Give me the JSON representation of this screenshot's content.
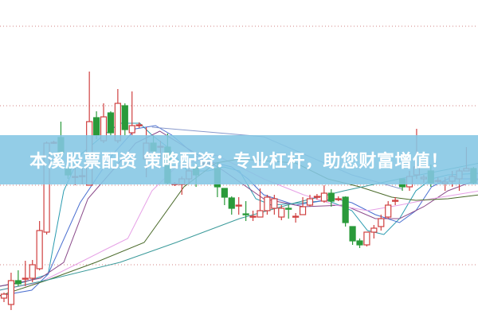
{
  "banner": {
    "text": "本溪股票配资 策略配资：专业杠杆，助您财富增值！"
  },
  "chart_data": {
    "type": "candlestick",
    "grid": true,
    "gridlines": [
      10,
      20,
      30,
      40
    ],
    "ylim": [
      0,
      43.3
    ],
    "colors": {
      "up": "#d04040",
      "down": "#2a9a3a",
      "grid": "#d08080",
      "banner": "#84c6e4"
    },
    "candles_ohlc": [
      [
        5.8,
        6.5,
        5.3,
        6.3
      ],
      [
        5.0,
        9.0,
        4.3,
        8.0
      ],
      [
        8.0,
        9.3,
        7.3,
        7.6
      ],
      [
        8.2,
        10.5,
        7.3,
        8.3
      ],
      [
        8.3,
        10.6,
        7.8,
        10.0
      ],
      [
        9.5,
        15.5,
        9.3,
        14.3
      ],
      [
        14.1,
        25.5,
        13.8,
        25.3
      ],
      [
        25.3,
        25.6,
        25.2,
        25.4
      ],
      [
        26.0,
        28.0,
        22.6,
        24.1
      ],
      [
        22.0,
        23.6,
        20.8,
        21.3
      ],
      [
        21.1,
        22.3,
        20.0,
        21.1
      ],
      [
        21.1,
        22.1,
        20.1,
        21.2
      ],
      [
        20.0,
        34.3,
        20.0,
        28.0
      ],
      [
        28.5,
        29.3,
        25.8,
        26.3
      ],
      [
        25.6,
        30.3,
        25.3,
        28.6
      ],
      [
        29.1,
        29.3,
        26.3,
        26.6
      ],
      [
        25.6,
        32.1,
        25.3,
        30.3
      ],
      [
        30.0,
        30.3,
        26.3,
        27.0
      ],
      [
        26.6,
        31.8,
        26.3,
        27.5
      ],
      [
        27.5,
        27.9,
        27.2,
        27.6
      ],
      [
        23.3,
        27.3,
        21.0,
        25.3
      ],
      [
        25.3,
        26.3,
        23.3,
        24.3
      ],
      [
        24.8,
        25.6,
        23.3,
        24.9
      ],
      [
        24.8,
        26.5,
        20.1,
        20.3
      ],
      [
        20.1,
        20.4,
        19.9,
        20.2
      ],
      [
        20.1,
        21.1,
        18.8,
        20.8
      ],
      [
        20.8,
        22.8,
        20.1,
        21.8
      ],
      [
        22.3,
        22.8,
        19.8,
        21.3
      ],
      [
        22.8,
        23.3,
        22.3,
        22.8
      ],
      [
        22.8,
        23.1,
        22.5,
        22.8
      ],
      [
        22.1,
        22.8,
        18.5,
        19.8
      ],
      [
        19.6,
        19.6,
        17.5,
        18.5
      ],
      [
        18.4,
        18.6,
        16.3,
        17.1
      ],
      [
        17.5,
        18.5,
        16.3,
        17.5
      ],
      [
        16.4,
        18.0,
        15.5,
        16.3
      ],
      [
        16.1,
        16.8,
        15.5,
        16.1
      ],
      [
        16.0,
        19.6,
        16.0,
        16.8
      ],
      [
        16.8,
        18.8,
        16.3,
        18.5
      ],
      [
        17.1,
        18.8,
        16.3,
        18.3
      ],
      [
        16.0,
        17.5,
        15.6,
        17.1
      ],
      [
        17.1,
        17.5,
        15.8,
        17.0
      ],
      [
        16.1,
        16.5,
        15.3,
        16.1
      ],
      [
        16.3,
        18.5,
        16.3,
        17.3
      ],
      [
        17.5,
        18.8,
        17.3,
        18.3
      ],
      [
        18.6,
        18.9,
        18.2,
        18.6
      ],
      [
        18.0,
        20.0,
        17.8,
        19.0
      ],
      [
        19.0,
        19.5,
        17.3,
        18.0
      ],
      [
        18.3,
        18.6,
        18.0,
        18.3
      ],
      [
        18.5,
        18.6,
        14.8,
        15.3
      ],
      [
        14.8,
        14.8,
        12.5,
        13.0
      ],
      [
        13.0,
        13.3,
        12.1,
        12.5
      ],
      [
        12.5,
        14.1,
        12.3,
        14.1
      ],
      [
        14.1,
        15.0,
        13.3,
        14.6
      ],
      [
        14.8,
        16.3,
        14.3,
        15.8
      ],
      [
        16.0,
        18.0,
        15.8,
        17.5
      ],
      [
        18.1,
        18.5,
        17.5,
        18.1
      ],
      [
        20.8,
        20.8,
        19.3,
        19.8
      ],
      [
        19.8,
        21.8,
        19.3,
        21.1
      ],
      [
        21.3,
        27.1,
        20.8,
        22.3
      ],
      [
        20.8,
        21.3,
        20.3,
        21.0
      ],
      [
        21.8,
        22.6,
        19.8,
        20.3
      ],
      [
        20.6,
        21.0,
        20.3,
        20.6
      ],
      [
        20.2,
        21.0,
        19.3,
        20.4
      ],
      [
        20.5,
        21.8,
        19.8,
        21.1
      ],
      [
        20.8,
        22.1,
        19.3,
        21.8
      ],
      [
        21.8,
        24.8,
        21.8,
        22.1
      ],
      [
        22.1,
        22.3,
        20.1,
        20.3
      ]
    ],
    "moving_averages": [
      {
        "color": "#2a9bb0",
        "points": [
          [
            -0.6,
            7.3
          ],
          [
            2.8,
            7.8
          ],
          [
            6.2,
            8.8
          ],
          [
            8.4,
            19.3
          ],
          [
            10.7,
            23.8
          ],
          [
            14,
            26.3
          ],
          [
            16.3,
            27.8
          ],
          [
            19.1,
            27.8
          ],
          [
            20.8,
            26.3
          ],
          [
            23,
            24.8
          ],
          [
            25.8,
            21.8
          ],
          [
            28.7,
            21.8
          ],
          [
            30.9,
            22.3
          ],
          [
            33.1,
            21.8
          ],
          [
            35.4,
            18.3
          ],
          [
            37.6,
            17.5
          ],
          [
            42.1,
            17.8
          ],
          [
            45.5,
            18.1
          ],
          [
            48.9,
            16.8
          ],
          [
            51.1,
            14.3
          ],
          [
            53.4,
            13.8
          ],
          [
            55.6,
            15.8
          ],
          [
            57.9,
            19.3
          ],
          [
            60.1,
            20.8
          ],
          [
            62.4,
            21.3
          ],
          [
            66.9,
            21.5
          ]
        ]
      },
      {
        "color": "#4a6fd0",
        "points": [
          [
            -0.6,
            6.1
          ],
          [
            3.9,
            6.8
          ],
          [
            6.2,
            8.8
          ],
          [
            10.7,
            17.8
          ],
          [
            15.2,
            23.8
          ],
          [
            18.5,
            27.1
          ],
          [
            21.3,
            27.5
          ],
          [
            23.6,
            26.3
          ],
          [
            27.5,
            23.3
          ],
          [
            32,
            22.3
          ],
          [
            34.3,
            20.8
          ],
          [
            36.5,
            18.8
          ],
          [
            41,
            17.5
          ],
          [
            46.6,
            18.3
          ],
          [
            48.9,
            17.8
          ],
          [
            52.2,
            16.3
          ],
          [
            55.6,
            15.3
          ],
          [
            57.9,
            16.8
          ],
          [
            60.1,
            19.8
          ],
          [
            62.4,
            20.8
          ],
          [
            66.9,
            20.8
          ]
        ]
      },
      {
        "color": "#8a4a8a",
        "points": [
          [
            -0.6,
            7.3
          ],
          [
            5.1,
            8.3
          ],
          [
            8.4,
            10.3
          ],
          [
            11.8,
            18.3
          ],
          [
            15.2,
            21.8
          ],
          [
            18.5,
            25.3
          ],
          [
            21.9,
            26.8
          ],
          [
            26.4,
            24.3
          ],
          [
            30.9,
            21.8
          ],
          [
            36.5,
            18.3
          ],
          [
            42.1,
            17.3
          ],
          [
            47.8,
            17.5
          ],
          [
            52.2,
            15.8
          ],
          [
            55.6,
            15.8
          ],
          [
            59,
            17.3
          ],
          [
            62.4,
            19.3
          ],
          [
            66.9,
            20.8
          ]
        ]
      },
      {
        "color": "#e6a0e6",
        "points": [
          [
            -0.6,
            6.8
          ],
          [
            5.1,
            7.8
          ],
          [
            10.7,
            10.3
          ],
          [
            14,
            11.8
          ],
          [
            17.4,
            13.3
          ],
          [
            20.8,
            19.3
          ],
          [
            24.2,
            22.3
          ],
          [
            29.8,
            23.8
          ],
          [
            36.5,
            20.8
          ],
          [
            42.1,
            18.8
          ],
          [
            46.6,
            17.5
          ],
          [
            51.1,
            16.8
          ],
          [
            55.6,
            17.5
          ],
          [
            60.1,
            18.3
          ],
          [
            66.9,
            19.3
          ]
        ]
      },
      {
        "color": "#4a6a2a",
        "points": [
          [
            -0.6,
            6.1
          ],
          [
            6.2,
            8.1
          ],
          [
            12.9,
            10.3
          ],
          [
            19.7,
            12.8
          ],
          [
            25.3,
            19.8
          ],
          [
            29.8,
            22.8
          ],
          [
            33.1,
            23.3
          ],
          [
            41,
            22.8
          ],
          [
            45.5,
            20.8
          ],
          [
            50,
            19.8
          ],
          [
            54.5,
            18.5
          ],
          [
            57.9,
            18.1
          ],
          [
            62.4,
            18.3
          ],
          [
            66.9,
            18.8
          ]
        ]
      },
      {
        "color": "#3a9a9a",
        "points": [
          [
            -0.6,
            6.8
          ],
          [
            6.2,
            8.1
          ],
          [
            16.3,
            10.3
          ],
          [
            24.2,
            12.8
          ],
          [
            33.1,
            15.8
          ],
          [
            41,
            17.8
          ],
          [
            47.8,
            19.3
          ],
          [
            55.6,
            20.8
          ],
          [
            66.9,
            22.8
          ]
        ]
      },
      {
        "color": "#8899cc",
        "points": [
          [
            20.8,
            27.3
          ],
          [
            36.5,
            26.1
          ],
          [
            48.9,
            21.3
          ],
          [
            56,
            19.5
          ]
        ]
      }
    ]
  }
}
